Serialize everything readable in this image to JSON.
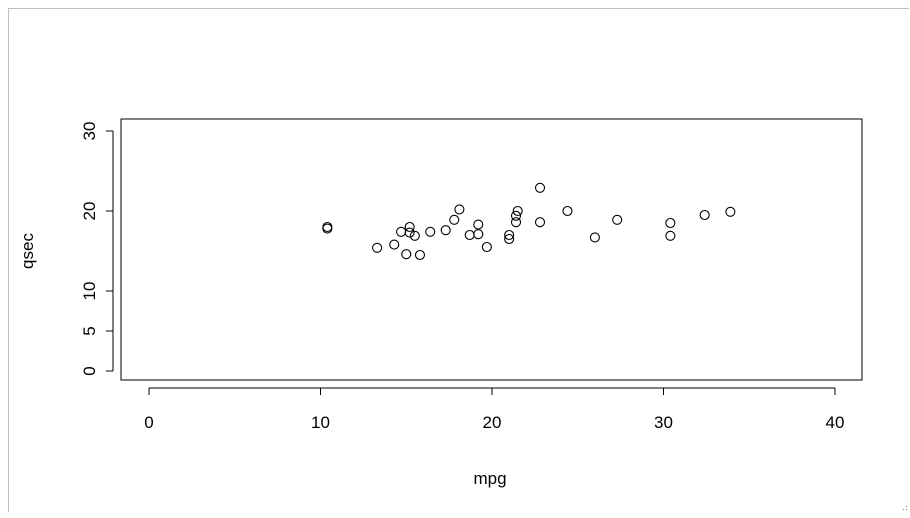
{
  "window": {
    "grip_icon": "resize-grip-icon"
  },
  "chart_data": {
    "type": "scatter",
    "title": "",
    "xlabel": "mpg",
    "ylabel": "qsec",
    "xlim": [
      0,
      40
    ],
    "ylim": [
      0,
      30
    ],
    "xticks": [
      0,
      10,
      20,
      30,
      40
    ],
    "yticks": [
      0,
      5,
      10,
      20,
      30
    ],
    "grid": false,
    "marker": "open-circle",
    "points": [
      {
        "x": 10.4,
        "y": 18.0
      },
      {
        "x": 10.4,
        "y": 17.8
      },
      {
        "x": 13.3,
        "y": 15.4
      },
      {
        "x": 14.3,
        "y": 15.8
      },
      {
        "x": 14.7,
        "y": 17.4
      },
      {
        "x": 15.0,
        "y": 14.6
      },
      {
        "x": 15.2,
        "y": 18.0
      },
      {
        "x": 15.2,
        "y": 17.3
      },
      {
        "x": 15.5,
        "y": 16.9
      },
      {
        "x": 15.8,
        "y": 14.5
      },
      {
        "x": 16.4,
        "y": 17.4
      },
      {
        "x": 17.3,
        "y": 17.6
      },
      {
        "x": 17.8,
        "y": 18.9
      },
      {
        "x": 18.1,
        "y": 20.2
      },
      {
        "x": 18.7,
        "y": 17.0
      },
      {
        "x": 19.2,
        "y": 18.3
      },
      {
        "x": 19.2,
        "y": 17.1
      },
      {
        "x": 19.7,
        "y": 15.5
      },
      {
        "x": 21.0,
        "y": 16.5
      },
      {
        "x": 21.0,
        "y": 17.0
      },
      {
        "x": 21.4,
        "y": 19.4
      },
      {
        "x": 21.4,
        "y": 18.6
      },
      {
        "x": 21.5,
        "y": 20.0
      },
      {
        "x": 22.8,
        "y": 22.9
      },
      {
        "x": 22.8,
        "y": 18.6
      },
      {
        "x": 24.4,
        "y": 20.0
      },
      {
        "x": 26.0,
        "y": 16.7
      },
      {
        "x": 27.3,
        "y": 18.9
      },
      {
        "x": 30.4,
        "y": 18.5
      },
      {
        "x": 30.4,
        "y": 16.9
      },
      {
        "x": 32.4,
        "y": 19.5
      },
      {
        "x": 33.9,
        "y": 19.9
      }
    ]
  }
}
